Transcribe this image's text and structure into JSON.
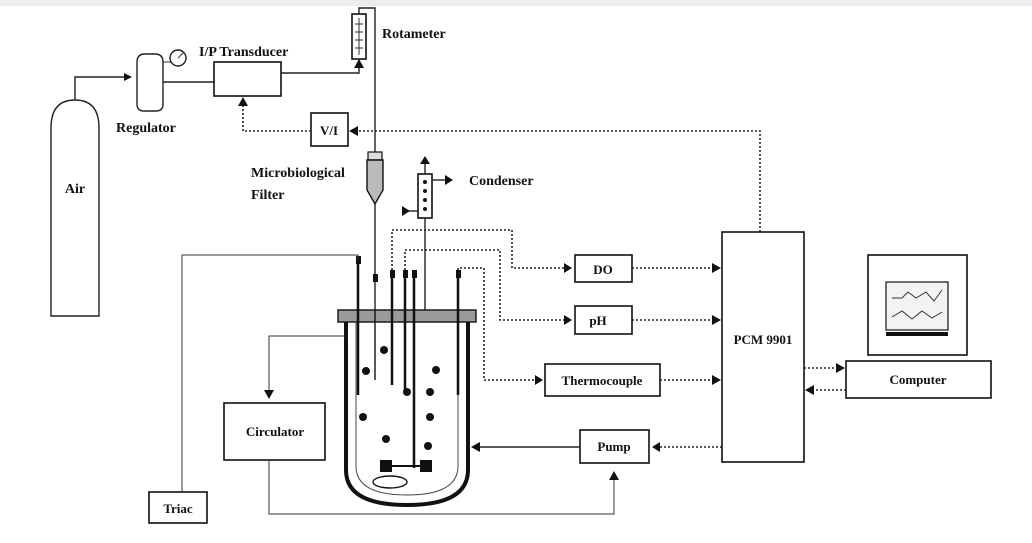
{
  "labels": {
    "air": "Air",
    "regulator": "Regulator",
    "ip_transducer": "I/P Transducer",
    "rotameter": "Rotameter",
    "vi": "V/I",
    "microbiological_filter_line1": "Microbiological",
    "microbiological_filter_line2": "Filter",
    "condenser": "Condenser",
    "do": "DO",
    "ph": "pH",
    "thermocouple": "Thermocouple",
    "pump": "Pump",
    "pcm": "PCM 9901",
    "computer": "Computer",
    "circulator": "Circulator",
    "triac": "Triac"
  },
  "colors": {
    "line": "#222222",
    "background": "#ffffff",
    "lid": "#9a9a9a",
    "screen": "#f3f3f3"
  }
}
